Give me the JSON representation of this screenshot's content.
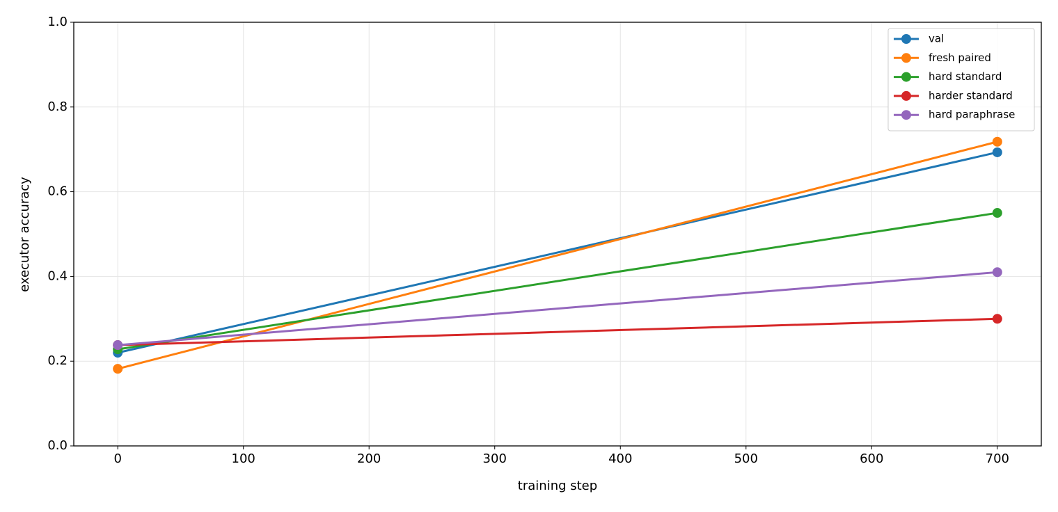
{
  "chart_data": {
    "type": "line",
    "x_label": "training step",
    "y_label": "executor accuracy",
    "x": [
      0,
      700
    ],
    "series": [
      {
        "name": "val",
        "color": "#1f77b4",
        "values": [
          0.22,
          0.693
        ]
      },
      {
        "name": "fresh paired",
        "color": "#ff7f0e",
        "values": [
          0.182,
          0.718
        ]
      },
      {
        "name": "hard standard",
        "color": "#2ca02c",
        "values": [
          0.228,
          0.55
        ]
      },
      {
        "name": "harder standard",
        "color": "#d62728",
        "values": [
          0.238,
          0.3
        ]
      },
      {
        "name": "hard paraphrase",
        "color": "#9467bd",
        "values": [
          0.238,
          0.41
        ]
      }
    ],
    "xlim": [
      -35,
      735
    ],
    "ylim": [
      0,
      1
    ],
    "xticks": [
      0,
      100,
      200,
      300,
      400,
      500,
      600,
      700
    ],
    "yticks": [
      {
        "value": 0,
        "label": "0.0"
      },
      {
        "value": 0.2,
        "label": "0.2"
      },
      {
        "value": 0.4,
        "label": "0.4"
      },
      {
        "value": 0.6,
        "label": "0.6"
      },
      {
        "value": 0.8,
        "label": "0.8"
      },
      {
        "value": 1,
        "label": "1.0"
      }
    ],
    "grid": true,
    "legend": "upper right"
  }
}
